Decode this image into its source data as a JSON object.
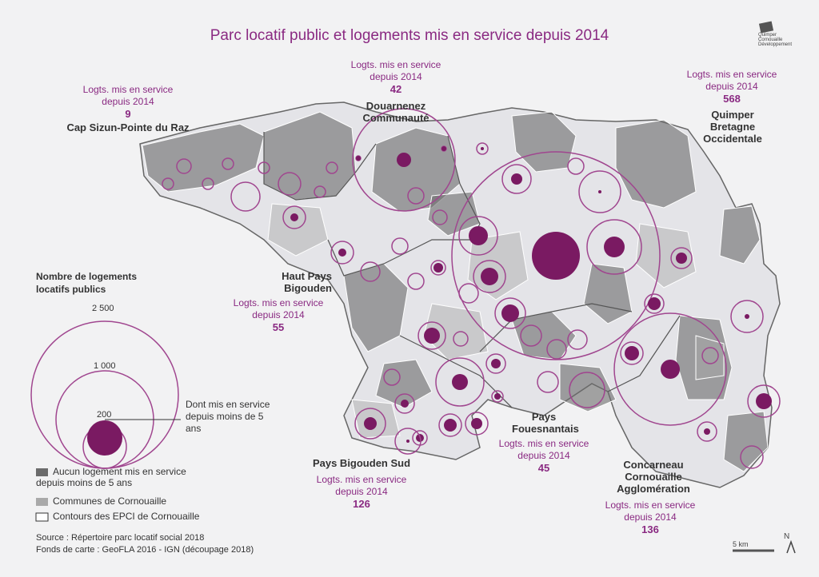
{
  "title": "Parc locatif public et logements mis en service depuis 2014",
  "logo_text": [
    "Quimper",
    "Cornouaille",
    "Développement"
  ],
  "colors": {
    "accent": "#7a1a62",
    "ring": "#a0468f",
    "title": "#8a2a82",
    "commune_grey": "#a9a9a9",
    "commune_light": "#e4e4e8",
    "inactive": "#6b6b6b"
  },
  "epci": [
    {
      "name": "Cap Sizun-Pointe du Raz",
      "head": "Logts. mis en service depuis 2014",
      "value": "9"
    },
    {
      "name": "Douarnenez Communauté",
      "head": "Logts. mis en service depuis 2014",
      "value": "42"
    },
    {
      "name": "Quimper Bretagne Occidentale",
      "head": "Logts. mis en service depuis 2014",
      "value": "568"
    },
    {
      "name": "Haut Pays Bigouden",
      "head": "Logts. mis en service depuis 2014",
      "value": "55"
    },
    {
      "name": "Pays Fouesnantais",
      "head": "Logts. mis en service depuis 2014",
      "value": "45"
    },
    {
      "name": "Pays Bigouden Sud",
      "head": "Logts. mis en service depuis 2014",
      "value": "126"
    },
    {
      "name": "Concarneau Cornouaille Agglomération",
      "head": "Logts. mis en service depuis 2014",
      "value": "136"
    }
  ],
  "legend": {
    "title": "Nombre de logements locatifs publics",
    "sizes": [
      "2 500",
      "1 000",
      "200"
    ],
    "inner_note": "Dont mis en service depuis moins de 5 ans",
    "keys": [
      {
        "label": "Aucun logement mis en service depuis moins de 5 ans",
        "color": "#6b6b6b"
      },
      {
        "label": "Communes de Cornouaille",
        "color": "#a9a9a9"
      },
      {
        "label": "Contours des EPCI de Cornouaille",
        "color": "#ffffff"
      }
    ]
  },
  "source": [
    "Source : Répertoire parc locatif social 2018",
    "Fonds de carte : GeoFLA 2016 - IGN (découpage 2018)"
  ],
  "scale": "5 km",
  "north": "N"
}
